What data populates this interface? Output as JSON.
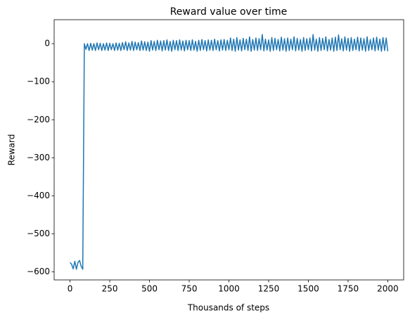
{
  "chart_data": {
    "type": "line",
    "title": "Reward value over time",
    "x_label": "Thousands of steps",
    "y_label": "Reward",
    "x": [
      0,
      10,
      20,
      30,
      40,
      50,
      60,
      70,
      80,
      90,
      100,
      110,
      120,
      130,
      140,
      150,
      160,
      170,
      180,
      190,
      200,
      210,
      220,
      230,
      240,
      250,
      260,
      270,
      280,
      290,
      300,
      310,
      320,
      330,
      340,
      350,
      360,
      370,
      380,
      390,
      400,
      410,
      420,
      430,
      440,
      450,
      460,
      470,
      480,
      490,
      500,
      510,
      520,
      530,
      540,
      550,
      560,
      570,
      580,
      590,
      600,
      610,
      620,
      630,
      640,
      650,
      660,
      670,
      680,
      690,
      700,
      710,
      720,
      730,
      740,
      750,
      760,
      770,
      780,
      790,
      800,
      810,
      820,
      830,
      840,
      850,
      860,
      870,
      880,
      890,
      900,
      910,
      920,
      930,
      940,
      950,
      960,
      970,
      980,
      990,
      1000,
      1010,
      1020,
      1030,
      1040,
      1050,
      1060,
      1070,
      1080,
      1090,
      1100,
      1110,
      1120,
      1130,
      1140,
      1150,
      1160,
      1170,
      1180,
      1190,
      1200,
      1210,
      1220,
      1230,
      1240,
      1250,
      1260,
      1270,
      1280,
      1290,
      1300,
      1310,
      1320,
      1330,
      1340,
      1350,
      1360,
      1370,
      1380,
      1390,
      1400,
      1410,
      1420,
      1430,
      1440,
      1450,
      1460,
      1470,
      1480,
      1490,
      1500,
      1510,
      1520,
      1530,
      1540,
      1550,
      1560,
      1570,
      1580,
      1590,
      1600,
      1610,
      1620,
      1630,
      1640,
      1650,
      1660,
      1670,
      1680,
      1690,
      1700,
      1710,
      1720,
      1730,
      1740,
      1750,
      1760,
      1770,
      1780,
      1790,
      1800,
      1810,
      1820,
      1830,
      1840,
      1850,
      1860,
      1870,
      1880,
      1890,
      1900,
      1910,
      1920,
      1930,
      1940,
      1950,
      1960,
      1970,
      1980,
      1990,
      2000
    ],
    "series": [
      {
        "name": "Reward",
        "color": "#1f77b4",
        "values": [
          -575,
          -580,
          -592,
          -572,
          -593,
          -575,
          -570,
          -585,
          -593,
          0,
          -15,
          0,
          -18,
          1,
          -17,
          0,
          -18,
          2,
          -16,
          1,
          -18,
          0,
          -17,
          2,
          -18,
          1,
          -16,
          0,
          -18,
          2,
          -17,
          1,
          -18,
          3,
          -16,
          5,
          -18,
          2,
          -17,
          6,
          -18,
          4,
          -16,
          3,
          -18,
          7,
          -17,
          5,
          -18,
          4,
          -20,
          8,
          -17,
          6,
          -18,
          9,
          -16,
          7,
          -19,
          8,
          -17,
          10,
          -18,
          6,
          -20,
          9,
          -16,
          8,
          -18,
          10,
          -17,
          7,
          -19,
          9,
          -16,
          8,
          -18,
          10,
          -17,
          6,
          -20,
          9,
          -18,
          11,
          -16,
          8,
          -19,
          10,
          -17,
          9,
          -18,
          12,
          -16,
          8,
          -19,
          10,
          -17,
          11,
          -18,
          9,
          -16,
          15,
          -18,
          12,
          -20,
          16,
          -17,
          10,
          -19,
          14,
          -16,
          12,
          -18,
          18,
          -20,
          11,
          -17,
          15,
          -18,
          13,
          -16,
          24,
          -19,
          12,
          -17,
          10,
          -20,
          16,
          -18,
          14,
          -16,
          11,
          -19,
          17,
          -17,
          13,
          -20,
          15,
          -18,
          12,
          -16,
          18,
          -19,
          14,
          -17,
          11,
          -20,
          16,
          -18,
          13,
          -16,
          15,
          -19,
          24,
          -17,
          12,
          -20,
          16,
          -18,
          14,
          -16,
          18,
          -19,
          11,
          -17,
          15,
          -20,
          17,
          -18,
          23,
          -16,
          13,
          -19,
          18,
          -17,
          14,
          -20,
          16,
          -18,
          12,
          -16,
          17,
          -19,
          15,
          -17,
          13,
          -20,
          18,
          -18,
          11,
          -16,
          15,
          -19,
          17,
          -17,
          12,
          -20,
          16,
          -18,
          15,
          -20
        ]
      }
    ],
    "xlim": [
      -100,
      2100
    ],
    "ylim": [
      -621,
      63
    ],
    "xticks": [
      0,
      250,
      500,
      750,
      1000,
      1250,
      1500,
      1750,
      2000
    ],
    "yticks": [
      {
        "value": -600,
        "label": "−600"
      },
      {
        "value": -500,
        "label": "−500"
      },
      {
        "value": -400,
        "label": "−400"
      },
      {
        "value": -300,
        "label": "−300"
      },
      {
        "value": -200,
        "label": "−200"
      },
      {
        "value": -100,
        "label": "−100"
      },
      0
    ],
    "grid": false
  }
}
